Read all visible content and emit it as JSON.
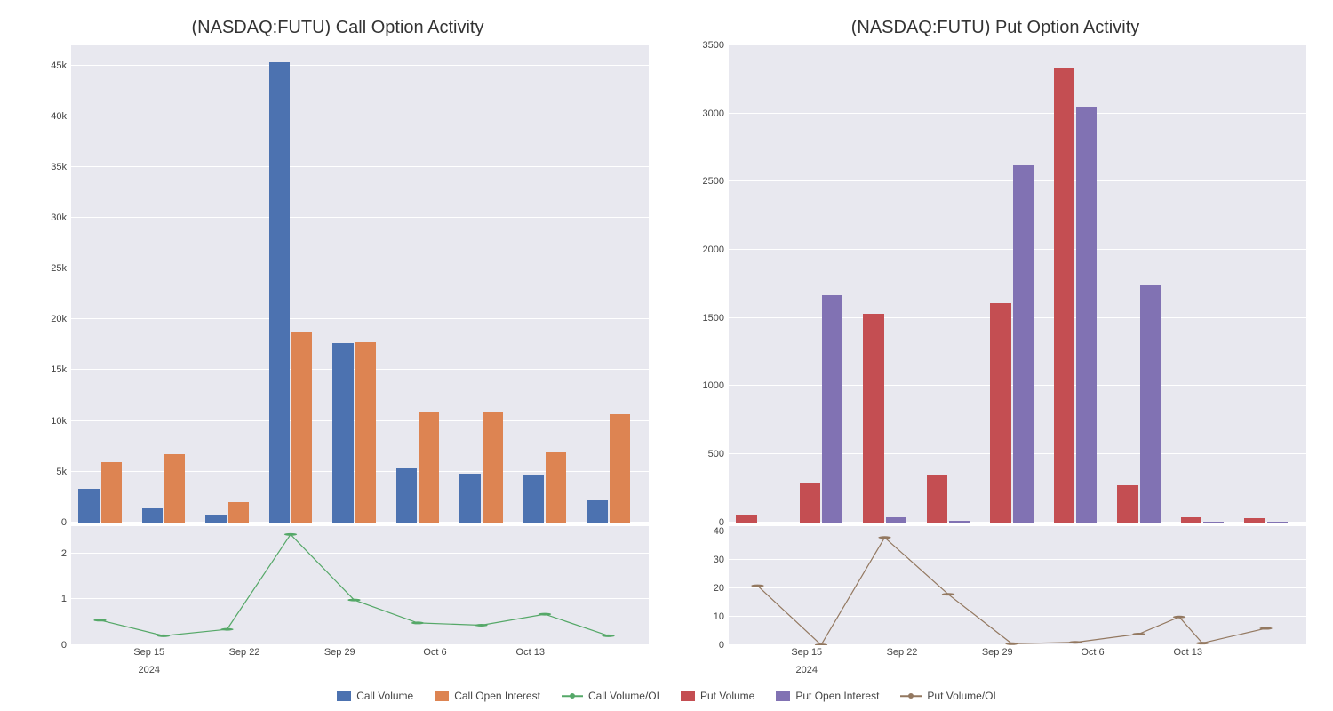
{
  "call_chart": {
    "type": "bar+line",
    "title": "(NASDAQ:FUTU) Call Option Activity",
    "title_fontsize": 20,
    "background_color": "#e8e8ef",
    "grid_color": "#ffffff",
    "x_labels": [
      "Sep 15",
      "Sep 22",
      "Sep 29",
      "Oct 6",
      "Oct 13"
    ],
    "x_label_positions_pct": [
      13.5,
      30,
      46.5,
      63,
      79.5
    ],
    "x_year_label": "2024",
    "x_year_position_pct": 13.5,
    "bar_group_positions_pct": [
      5,
      16,
      27,
      38,
      49,
      60,
      71,
      82,
      93
    ],
    "bar_series": [
      {
        "name": "Call Volume",
        "color": "#4c72b0",
        "values": [
          3300,
          1400,
          700,
          45300,
          17700,
          5300,
          4800,
          4700,
          2200
        ]
      },
      {
        "name": "Call Open Interest",
        "color": "#dd8452",
        "values": [
          5900,
          6700,
          2000,
          18700,
          17800,
          10800,
          10800,
          6900,
          10700
        ]
      }
    ],
    "y_max": 47000,
    "y_ticks": [
      0,
      5000,
      10000,
      15000,
      20000,
      25000,
      30000,
      35000,
      40000,
      45000
    ],
    "y_tick_labels": [
      "0",
      "5k",
      "10k",
      "15k",
      "20k",
      "25k",
      "30k",
      "35k",
      "40k",
      "45k"
    ],
    "line_series": {
      "name": "Call Volume/OI",
      "color": "#55a868",
      "values": [
        0.55,
        0.21,
        0.35,
        2.42,
        0.99,
        0.49,
        0.44,
        0.68,
        0.21
      ],
      "y_max": 2.6,
      "y_ticks": [
        0,
        1,
        2
      ],
      "y_tick_labels": [
        "0",
        "1",
        "2"
      ]
    }
  },
  "put_chart": {
    "type": "bar+line",
    "title": "(NASDAQ:FUTU) Put Option Activity",
    "title_fontsize": 20,
    "background_color": "#e8e8ef",
    "grid_color": "#ffffff",
    "x_labels": [
      "Sep 15",
      "Sep 22",
      "Sep 29",
      "Oct 6",
      "Oct 13"
    ],
    "x_label_positions_pct": [
      13.5,
      30,
      46.5,
      63,
      79.5
    ],
    "x_year_label": "2024",
    "x_year_position_pct": 13.5,
    "bar_group_positions_pct": [
      5,
      16,
      27,
      38,
      49,
      60,
      71,
      82,
      93
    ],
    "bar_series": [
      {
        "name": "Put Volume",
        "color": "#c44e52",
        "values": [
          50,
          290,
          1530,
          350,
          1610,
          3330,
          270,
          40,
          30
        ]
      },
      {
        "name": "Put Open Interest",
        "color": "#8172b3",
        "values": [
          2,
          1670,
          40,
          10,
          2620,
          3050,
          1740,
          5,
          5
        ]
      }
    ],
    "y_max": 3500,
    "y_ticks": [
      0,
      500,
      1000,
      1500,
      2000,
      2500,
      3000,
      3500
    ],
    "y_tick_labels": [
      "0",
      "500",
      "1000",
      "1500",
      "2000",
      "2500",
      "3000",
      "3500"
    ],
    "line_series": {
      "name": "Put Volume/OI",
      "color": "#937860",
      "values": [
        21,
        0.17,
        38,
        18,
        0.6,
        1.09,
        4,
        10,
        0.8,
        6
      ],
      "x_positions_pct": [
        5,
        16,
        27,
        38,
        49,
        60,
        71,
        78,
        82,
        93
      ],
      "y_max": 42,
      "y_ticks": [
        0,
        10,
        20,
        30,
        40
      ],
      "y_tick_labels": [
        "0",
        "10",
        "20",
        "30",
        "40"
      ]
    }
  },
  "legend": {
    "items": [
      {
        "type": "swatch",
        "label": "Call Volume",
        "color": "#4c72b0"
      },
      {
        "type": "swatch",
        "label": "Call Open Interest",
        "color": "#dd8452"
      },
      {
        "type": "line",
        "label": "Call Volume/OI",
        "color": "#55a868"
      },
      {
        "type": "swatch",
        "label": "Put Volume",
        "color": "#c44e52"
      },
      {
        "type": "swatch",
        "label": "Put Open Interest",
        "color": "#8172b3"
      },
      {
        "type": "line",
        "label": "Put Volume/OI",
        "color": "#937860"
      }
    ]
  }
}
